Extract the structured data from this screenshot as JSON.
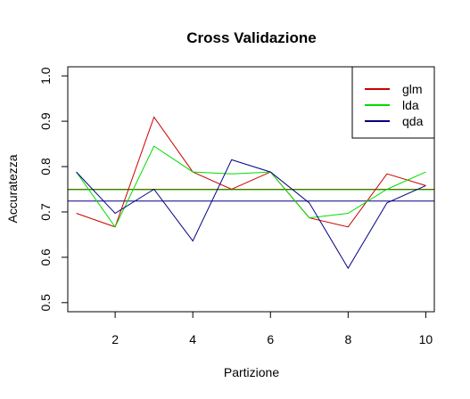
{
  "chart_data": {
    "type": "line",
    "title": "Cross Validazione",
    "xlabel": "Partizione",
    "ylabel": "Accuratezza",
    "x": [
      1,
      2,
      3,
      4,
      5,
      6,
      7,
      8,
      9,
      10
    ],
    "xlim": [
      0.78,
      10.22
    ],
    "ylim": [
      0.48,
      1.02
    ],
    "xticks": [
      2,
      4,
      6,
      8,
      10
    ],
    "yticks": [
      0.5,
      0.6,
      0.7,
      0.8,
      0.9,
      1.0
    ],
    "ytick_labels": [
      "0.5",
      "0.6",
      "0.7",
      "0.8",
      "0.9",
      "1.0"
    ],
    "grid": false,
    "legend_position": "top-right",
    "series": [
      {
        "name": "glm",
        "color": "#cc0000",
        "values": [
          0.697,
          0.667,
          0.909,
          0.788,
          0.75,
          0.788,
          0.687,
          0.667,
          0.784,
          0.758
        ]
      },
      {
        "name": "lda",
        "color": "#00dd00",
        "values": [
          0.788,
          0.667,
          0.845,
          0.788,
          0.784,
          0.788,
          0.687,
          0.697,
          0.75,
          0.788
        ]
      },
      {
        "name": "qda",
        "color": "#000080",
        "values": [
          0.788,
          0.697,
          0.75,
          0.636,
          0.815,
          0.788,
          0.72,
          0.576,
          0.72,
          0.758
        ]
      }
    ],
    "hlines": [
      {
        "series": "glm",
        "color": "#cc0000",
        "y": 0.75
      },
      {
        "series": "lda",
        "color": "#00cc00",
        "y": 0.749
      },
      {
        "series": "qda",
        "color": "#000080",
        "y": 0.724
      }
    ]
  }
}
